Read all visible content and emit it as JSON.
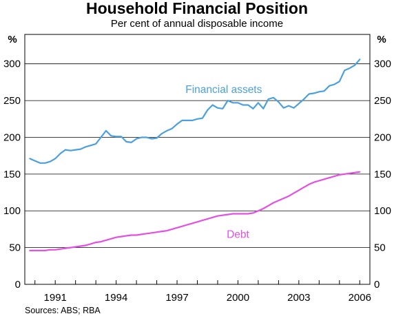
{
  "chart_data": {
    "type": "line",
    "title": "Household Financial Position",
    "subtitle": "Per cent of annual disposable income",
    "ylabel_left": "%",
    "ylabel_right": "%",
    "xlim": [
      1989.5,
      2006.5
    ],
    "ylim": [
      0,
      300
    ],
    "yticks": [
      0,
      50,
      100,
      150,
      200,
      250,
      300
    ],
    "xticks": [
      1991,
      1994,
      1997,
      2000,
      2003,
      2006
    ],
    "xtick_labels": [
      "1991",
      "1994",
      "1997",
      "2000",
      "2003",
      "2006"
    ],
    "grid": true,
    "source": "Sources: ABS; RBA",
    "series": [
      {
        "name": "Financial assets",
        "color": "#4a9fe0",
        "label_position": [
          1999.3,
          265
        ],
        "x": [
          1989.75,
          1990.0,
          1990.25,
          1990.5,
          1990.75,
          1991.0,
          1991.25,
          1991.5,
          1991.75,
          1992.0,
          1992.25,
          1992.5,
          1992.75,
          1993.0,
          1993.25,
          1993.5,
          1993.75,
          1994.0,
          1994.25,
          1994.5,
          1994.75,
          1995.0,
          1995.25,
          1995.5,
          1995.75,
          1996.0,
          1996.25,
          1996.5,
          1996.75,
          1997.0,
          1997.25,
          1997.5,
          1997.75,
          1998.0,
          1998.25,
          1998.5,
          1998.75,
          1999.0,
          1999.25,
          1999.5,
          1999.75,
          2000.0,
          2000.25,
          2000.5,
          2000.75,
          2001.0,
          2001.25,
          2001.5,
          2001.75,
          2002.0,
          2002.25,
          2002.5,
          2002.75,
          2003.0,
          2003.25,
          2003.5,
          2003.75,
          2004.0,
          2004.25,
          2004.5,
          2004.75,
          2005.0,
          2005.25,
          2005.5,
          2005.75,
          2006.0
        ],
        "values": [
          171,
          168,
          165,
          165,
          167,
          171,
          178,
          183,
          182,
          183,
          184,
          187,
          189,
          191,
          200,
          209,
          202,
          201,
          201,
          194,
          193,
          198,
          200,
          200,
          198,
          199,
          205,
          209,
          212,
          218,
          223,
          223,
          223,
          225,
          226,
          237,
          244,
          240,
          239,
          250,
          247,
          247,
          244,
          244,
          239,
          247,
          239,
          252,
          254,
          248,
          240,
          243,
          240,
          246,
          252,
          259,
          260,
          262,
          263,
          270,
          272,
          276,
          291,
          294,
          298,
          306
        ]
      },
      {
        "name": "Debt",
        "color": "#e44ee4",
        "label_position": [
          2000.0,
          68
        ],
        "x": [
          1989.75,
          1990.0,
          1990.25,
          1990.5,
          1990.75,
          1991.0,
          1991.25,
          1991.5,
          1991.75,
          1992.0,
          1992.25,
          1992.5,
          1992.75,
          1993.0,
          1993.25,
          1993.5,
          1993.75,
          1994.0,
          1994.25,
          1994.5,
          1994.75,
          1995.0,
          1995.25,
          1995.5,
          1995.75,
          1996.0,
          1996.25,
          1996.5,
          1996.75,
          1997.0,
          1997.25,
          1997.5,
          1997.75,
          1998.0,
          1998.25,
          1998.5,
          1998.75,
          1999.0,
          1999.25,
          1999.5,
          1999.75,
          2000.0,
          2000.25,
          2000.5,
          2000.75,
          2001.0,
          2001.25,
          2001.5,
          2001.75,
          2002.0,
          2002.25,
          2002.5,
          2002.75,
          2003.0,
          2003.25,
          2003.5,
          2003.75,
          2004.0,
          2004.25,
          2004.5,
          2004.75,
          2005.0,
          2005.25,
          2005.5,
          2005.75,
          2006.0
        ],
        "values": [
          46,
          46,
          46,
          46,
          47,
          47,
          48,
          49,
          50,
          51,
          52,
          53,
          55,
          57,
          58,
          60,
          62,
          64,
          65,
          66,
          67,
          67,
          68,
          69,
          70,
          71,
          72,
          73,
          75,
          77,
          79,
          81,
          83,
          85,
          87,
          89,
          91,
          93,
          94,
          95,
          96,
          96,
          96,
          96,
          97,
          100,
          103,
          107,
          111,
          114,
          117,
          120,
          124,
          128,
          132,
          136,
          139,
          141,
          143,
          145,
          147,
          149,
          150,
          151,
          152,
          153
        ]
      }
    ]
  }
}
